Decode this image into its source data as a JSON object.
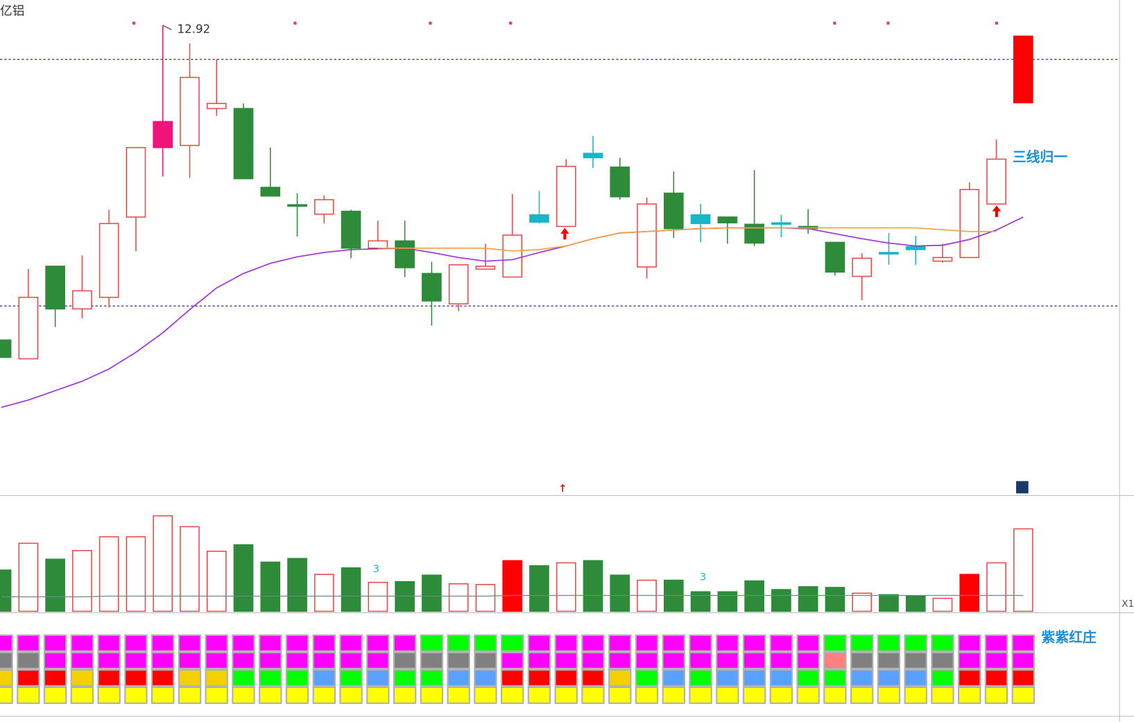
{
  "chart_data": [
    {
      "type": "candlestick",
      "title": "亿铝",
      "ylim": [
        10.32,
        13.06
      ],
      "hollow_color": "#e84a4a",
      "ohlc": [
        [
          11.18,
          11.084,
          11.18,
          11.084
        ],
        [
          11.076,
          11.416,
          11.572,
          11.076
        ],
        [
          11.588,
          11.352,
          11.588,
          11.252
        ],
        [
          11.352,
          11.452,
          11.648,
          11.3
        ],
        [
          11.416,
          11.824,
          11.9,
          11.36
        ],
        [
          11.86,
          12.244,
          12.244,
          11.672
        ],
        [
          12.244,
          12.388,
          12.92,
          12.084
        ],
        [
          12.256,
          12.632,
          12.82,
          12.076
        ],
        [
          12.46,
          12.488,
          12.732,
          12.42
        ],
        [
          12.46,
          12.072,
          12.488,
          12.072
        ],
        [
          12.024,
          11.976,
          12.244,
          11.976
        ],
        [
          11.928,
          11.924,
          11.992,
          11.752
        ],
        [
          11.876,
          11.956,
          11.98,
          11.824
        ],
        [
          11.892,
          11.688,
          11.9,
          11.632
        ],
        [
          11.688,
          11.728,
          11.84,
          11.688
        ],
        [
          11.728,
          11.58,
          11.84,
          11.528
        ],
        [
          11.548,
          11.396,
          11.612,
          11.26
        ],
        [
          11.38,
          11.596,
          11.596,
          11.34
        ],
        [
          11.572,
          11.588,
          11.712,
          11.572
        ],
        [
          11.528,
          11.76,
          11.988,
          11.528
        ],
        [
          11.872,
          11.832,
          12.004,
          11.824
        ],
        [
          11.808,
          12.14,
          12.18,
          11.808
        ],
        [
          12.212,
          12.188,
          12.308,
          12.132
        ],
        [
          12.136,
          11.972,
          12.188,
          11.956
        ],
        [
          11.584,
          11.932,
          11.968,
          11.52
        ],
        [
          11.992,
          11.796,
          12.112,
          11.744
        ],
        [
          11.872,
          11.824,
          11.932,
          11.72
        ],
        [
          11.86,
          11.828,
          11.86,
          11.712
        ],
        [
          11.82,
          11.716,
          12.12,
          11.7
        ],
        [
          11.828,
          11.82,
          11.872,
          11.748
        ],
        [
          11.808,
          11.796,
          11.904,
          11.768
        ],
        [
          11.72,
          11.556,
          11.72,
          11.536
        ],
        [
          11.532,
          11.632,
          11.66,
          11.4
        ],
        [
          11.664,
          11.656,
          11.772,
          11.596
        ],
        [
          11.696,
          11.68,
          11.756,
          11.596
        ],
        [
          11.616,
          11.636,
          11.712,
          11.608
        ],
        [
          11.636,
          12.012,
          12.052,
          11.636
        ],
        [
          11.932,
          12.18,
          12.288,
          11.932
        ],
        [
          12.492,
          12.86,
          12.86,
          12.492
        ]
      ],
      "colors": [
        "#2e8b3a",
        "#e84a4a",
        "#2e8b3a",
        "#e84a4a",
        "#e84a4a",
        "#e84a4a",
        "#f0147a",
        "#e84a4a",
        "#e84a4a",
        "#2e8b3a",
        "#2e8b3a",
        "#2e8b3a",
        "#e84a4a",
        "#2e8b3a",
        "#e84a4a",
        "#2e8b3a",
        "#2e8b3a",
        "#e84a4a",
        "#e84a4a",
        "#e84a4a",
        "#19b5c9",
        "#e84a4a",
        "#19b5c9",
        "#2e8b3a",
        "#e84a4a",
        "#2e8b3a",
        "#19b5c9",
        "#2e8b3a",
        "#2e8b3a",
        "#19b5c9",
        "#2e8b3a",
        "#2e8b3a",
        "#e84a4a",
        "#19b5c9",
        "#19b5c9",
        "#e84a4a",
        "#e84a4a",
        "#e84a4a",
        "#ff0000"
      ],
      "series": [
        {
          "color": "#9b30d9",
          "values": [
            10.808,
            10.848,
            10.9,
            10.952,
            11.02,
            11.112,
            11.22,
            11.348,
            11.468,
            11.548,
            11.604,
            11.64,
            11.664,
            11.68,
            11.684,
            11.688,
            11.664,
            11.636,
            11.616,
            11.624,
            11.664,
            11.7,
            11.74,
            11.772,
            11.78,
            11.788,
            11.796,
            11.8,
            11.8,
            11.8,
            11.796,
            11.768,
            11.74,
            11.716,
            11.7,
            11.704,
            11.736,
            11.788,
            11.86
          ]
        },
        {
          "color": "#f0a040",
          "values": [
            null,
            null,
            null,
            null,
            null,
            null,
            null,
            null,
            null,
            null,
            null,
            null,
            null,
            null,
            11.688,
            11.688,
            11.688,
            11.688,
            11.688,
            11.672,
            11.68,
            11.7,
            11.74,
            11.772,
            11.78,
            11.788,
            11.796,
            11.8,
            11.8,
            11.8,
            11.8,
            11.8,
            11.8,
            11.8,
            11.8,
            11.79,
            11.78,
            11.78,
            null
          ]
        }
      ],
      "hlines": [
        12.732,
        11.368
      ],
      "annotations": [
        "12.92",
        "三线归一"
      ]
    },
    {
      "type": "bar",
      "ylim": [
        0,
        160
      ],
      "hollow_color": "#e84a4a",
      "values": [
        57,
        94,
        72,
        84,
        103,
        103,
        132,
        117,
        83,
        92,
        68,
        73,
        51,
        60,
        40,
        41,
        50,
        38,
        37,
        70,
        63,
        67,
        70,
        50,
        43,
        43,
        27,
        27,
        42,
        30,
        34,
        33,
        25,
        23,
        21,
        18,
        51,
        67,
        114
      ],
      "colors": [
        "#2e8b3a",
        "#e84a4a",
        "#2e8b3a",
        "#e84a4a",
        "#e84a4a",
        "#e84a4a",
        "#e84a4a",
        "#e84a4a",
        "#e84a4a",
        "#2e8b3a",
        "#2e8b3a",
        "#2e8b3a",
        "#e84a4a",
        "#2e8b3a",
        "#e84a4a",
        "#2e8b3a",
        "#2e8b3a",
        "#e84a4a",
        "#e84a4a",
        "#ff0000",
        "#2e8b3a",
        "#e84a4a",
        "#2e8b3a",
        "#2e8b3a",
        "#e84a4a",
        "#2e8b3a",
        "#2e8b3a",
        "#2e8b3a",
        "#2e8b3a",
        "#2e8b3a",
        "#2e8b3a",
        "#2e8b3a",
        "#e84a4a",
        "#2e8b3a",
        "#2e8b3a",
        "#e84a4a",
        "#ff0000",
        "#e84a4a",
        "#e84a4a"
      ],
      "ma": {
        "color": "#6a8a8a",
        "values": [
          20,
          20,
          20,
          20,
          21,
          21,
          21,
          21,
          21,
          21,
          21,
          21,
          21,
          21,
          21,
          21,
          21,
          21,
          21,
          22,
          22,
          22,
          22,
          22,
          22,
          22,
          22,
          22,
          22,
          22,
          22,
          22,
          22,
          22,
          22,
          22,
          22,
          22,
          22
        ]
      },
      "annotations": [
        "3",
        "3"
      ],
      "axis_label": "X1"
    }
  ],
  "signal_grid": {
    "label": "紫紫红庄",
    "rows": [
      [
        "#ff00ff",
        "#ff00ff",
        "#ff00ff",
        "#ff00ff",
        "#ff00ff",
        "#ff00ff",
        "#ff00ff",
        "#ff00ff",
        "#ff00ff",
        "#ff00ff",
        "#ff00ff",
        "#ff00ff",
        "#ff00ff",
        "#ff00ff",
        "#ff00ff",
        "#ff00ff",
        "#00ff00",
        "#00ff00",
        "#00ff00",
        "#00ff00",
        "#ff00ff",
        "#ff00ff",
        "#ff00ff",
        "#ff00ff",
        "#ff00ff",
        "#ff00ff",
        "#ff00ff",
        "#ff00ff",
        "#ff00ff",
        "#ff00ff",
        "#ff00ff",
        "#00ff00",
        "#00ff00",
        "#00ff00",
        "#00ff00",
        "#00ff00",
        "#ff00ff",
        "#ff00ff",
        "#ff00ff"
      ],
      [
        "#808080",
        "#808080",
        "#ff00ff",
        "#ff00ff",
        "#ff00ff",
        "#ff00ff",
        "#ff00ff",
        "#ff00ff",
        "#ff00ff",
        "#ff00ff",
        "#ff00ff",
        "#ff00ff",
        "#ff00ff",
        "#ff00ff",
        "#ff00ff",
        "#808080",
        "#808080",
        "#808080",
        "#808080",
        "#ff00ff",
        "#ff00ff",
        "#ff00ff",
        "#ff00ff",
        "#ff00ff",
        "#ff00ff",
        "#ff00ff",
        "#ff00ff",
        "#ff00ff",
        "#ff00ff",
        "#ff00ff",
        "#ff00ff",
        "#ff8080",
        "#808080",
        "#808080",
        "#808080",
        "#808080",
        "#ff00ff",
        "#ff00ff",
        "#ff00ff"
      ],
      [
        "#f5d000",
        "#ff0000",
        "#ff0000",
        "#f5d000",
        "#ff0000",
        "#ff0000",
        "#ff0000",
        "#f5d000",
        "#f5d000",
        "#00ff00",
        "#00ff00",
        "#00ff00",
        "#5aa0ff",
        "#00ff00",
        "#5aa0ff",
        "#00ff00",
        "#00ff00",
        "#5aa0ff",
        "#5aa0ff",
        "#ff0000",
        "#ff0000",
        "#ff0000",
        "#ff0000",
        "#f5d000",
        "#00ff00",
        "#5aa0ff",
        "#00ff00",
        "#5aa0ff",
        "#5aa0ff",
        "#5aa0ff",
        "#00ff00",
        "#00ff00",
        "#5aa0ff",
        "#5aa0ff",
        "#5aa0ff",
        "#00ff00",
        "#ff0000",
        "#ff0000",
        "#ff0000"
      ],
      [
        "#ffff00",
        "#ffff00",
        "#ffff00",
        "#ffff00",
        "#ffff00",
        "#ffff00",
        "#ffff00",
        "#ffff00",
        "#ffff00",
        "#ffff00",
        "#ffff00",
        "#ffff00",
        "#ffff00",
        "#ffff00",
        "#ffff00",
        "#ffff00",
        "#ffff00",
        "#ffff00",
        "#ffff00",
        "#ffff00",
        "#ffff00",
        "#ffff00",
        "#ffff00",
        "#ffff00",
        "#ffff00",
        "#ffff00",
        "#ffff00",
        "#ffff00",
        "#ffff00",
        "#ffff00",
        "#ffff00",
        "#ffff00",
        "#ffff00",
        "#ffff00",
        "#ffff00",
        "#ffff00",
        "#ffff00",
        "#ffff00",
        "#ffff00"
      ]
    ]
  }
}
